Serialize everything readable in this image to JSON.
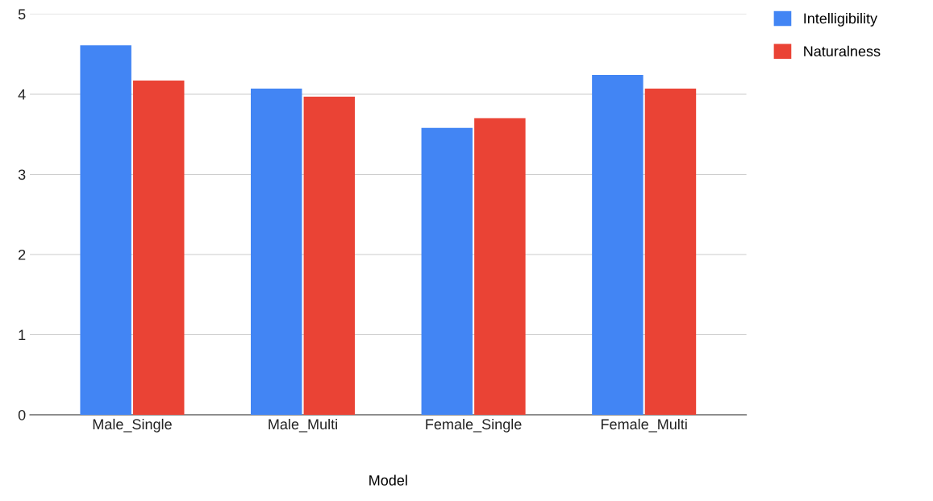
{
  "chart_data": {
    "type": "bar",
    "xlabel": "Model",
    "categories": [
      "Male_Single",
      "Male_Multi",
      "Female_Single",
      "Female_Multi"
    ],
    "series": [
      {
        "name": "Intelligibility",
        "color": "#4285f4",
        "values": [
          4.61,
          4.07,
          3.58,
          4.24
        ]
      },
      {
        "name": "Naturalness",
        "color": "#ea4335",
        "values": [
          4.17,
          3.97,
          3.7,
          4.07
        ]
      }
    ],
    "ylim": [
      0,
      5
    ],
    "yticks": [
      0,
      1,
      2,
      3,
      4,
      5
    ],
    "grid": "y",
    "legend": "top right"
  }
}
